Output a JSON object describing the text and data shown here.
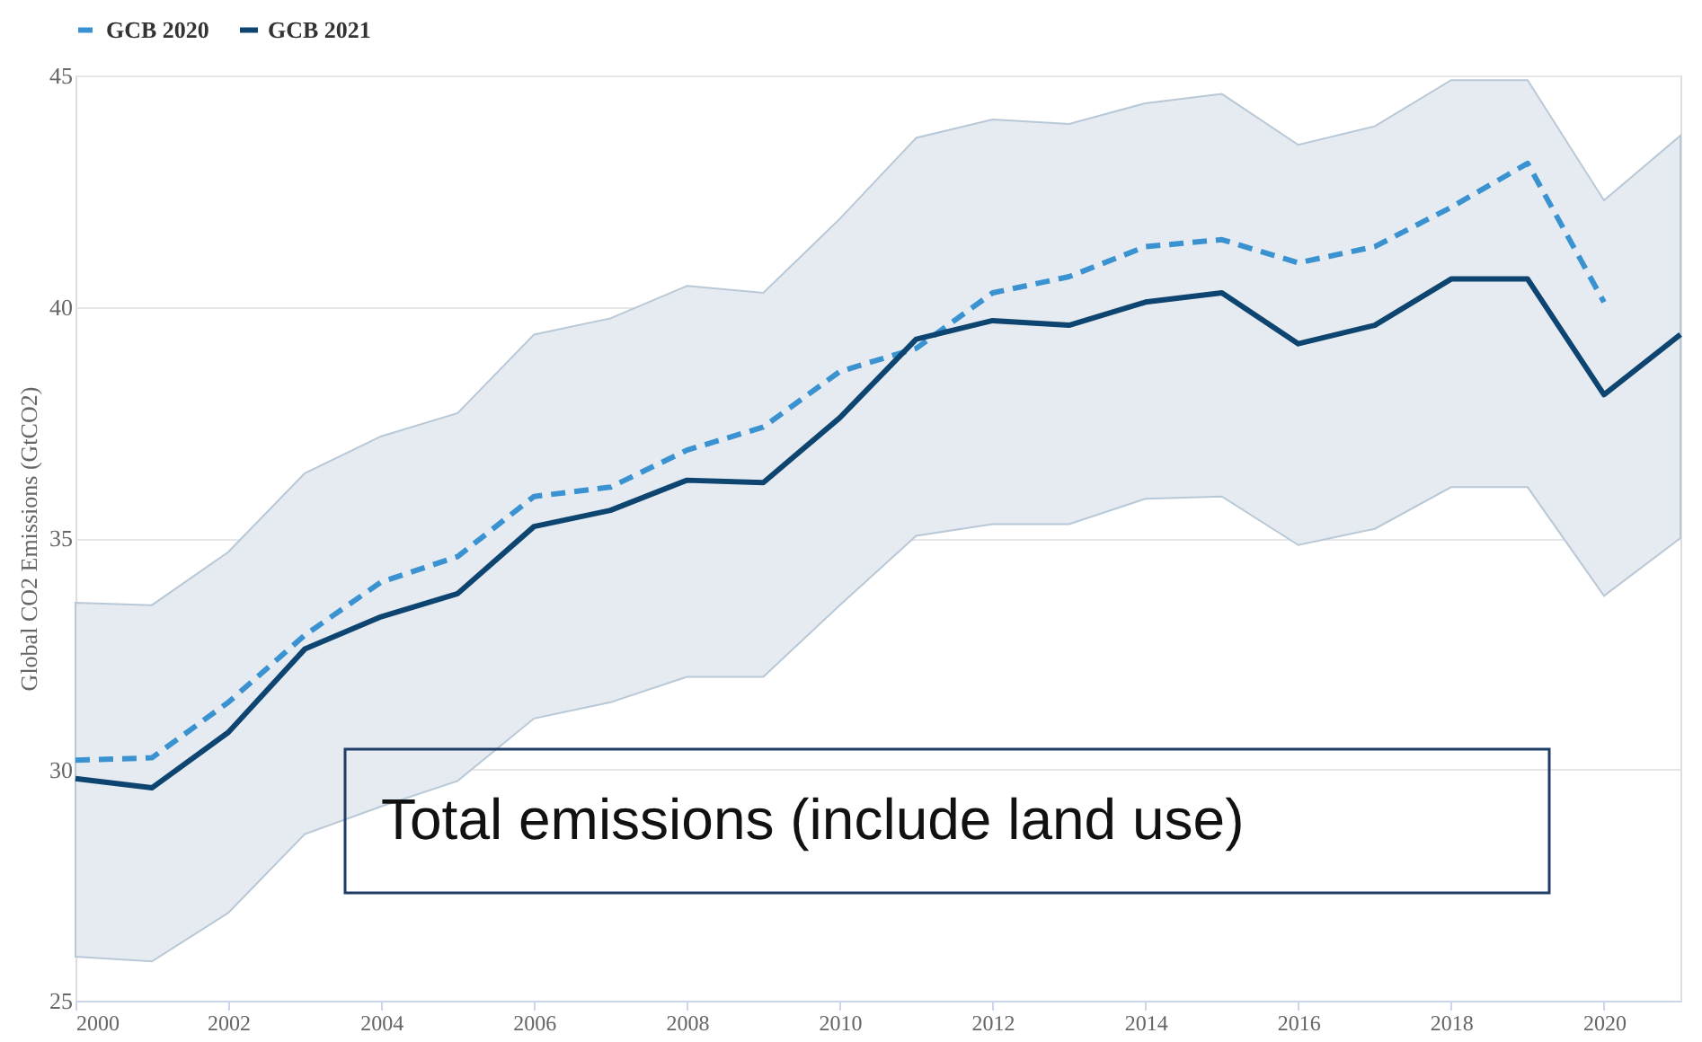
{
  "chart_data": {
    "type": "line",
    "ylabel": "Global CO2 Emissions (GtCO2)",
    "x": [
      2000,
      2001,
      2002,
      2003,
      2004,
      2005,
      2006,
      2007,
      2008,
      2009,
      2010,
      2011,
      2012,
      2013,
      2014,
      2015,
      2016,
      2017,
      2018,
      2019,
      2020,
      2021
    ],
    "series": [
      {
        "name": "GCB 2020",
        "color": "#3a93d0",
        "line_style": "dashed",
        "x": [
          2000,
          2001,
          2002,
          2003,
          2004,
          2005,
          2006,
          2007,
          2008,
          2009,
          2010,
          2011,
          2012,
          2013,
          2014,
          2015,
          2016,
          2017,
          2018,
          2019,
          2020
        ],
        "values": [
          30.2,
          30.25,
          31.45,
          32.9,
          34.05,
          34.6,
          35.9,
          36.1,
          36.9,
          37.4,
          38.6,
          39.1,
          40.3,
          40.65,
          41.3,
          41.45,
          40.95,
          41.3,
          42.15,
          43.1,
          40.1
        ]
      },
      {
        "name": "GCB 2021",
        "color": "#0e4470",
        "line_style": "solid",
        "values": [
          29.8,
          29.6,
          30.8,
          32.6,
          33.3,
          33.8,
          35.25,
          35.6,
          36.25,
          36.2,
          37.6,
          39.3,
          39.7,
          39.6,
          40.1,
          40.3,
          39.2,
          39.6,
          40.6,
          40.6,
          38.1,
          39.4
        ],
        "lower": [
          25.95,
          25.85,
          26.9,
          28.6,
          29.2,
          29.75,
          31.1,
          31.45,
          32.0,
          32.0,
          33.55,
          35.05,
          35.3,
          35.3,
          35.85,
          35.9,
          34.85,
          35.2,
          36.1,
          36.1,
          33.75,
          35.0
        ],
        "upper": [
          33.6,
          33.55,
          34.7,
          36.4,
          37.2,
          37.7,
          39.4,
          39.75,
          40.45,
          40.3,
          41.9,
          43.65,
          44.05,
          43.95,
          44.4,
          44.6,
          43.5,
          43.9,
          44.9,
          44.9,
          42.3,
          43.7
        ]
      }
    ],
    "xlim": [
      2000,
      2021
    ],
    "xticks": [
      2000,
      2002,
      2004,
      2006,
      2008,
      2010,
      2012,
      2014,
      2016,
      2018,
      2020
    ],
    "ylim": [
      25,
      45
    ],
    "yticks": [
      25,
      30,
      35,
      40,
      45
    ],
    "grid": "y",
    "legend": "top",
    "annotations": [
      "Total emissions (include land use)"
    ]
  }
}
